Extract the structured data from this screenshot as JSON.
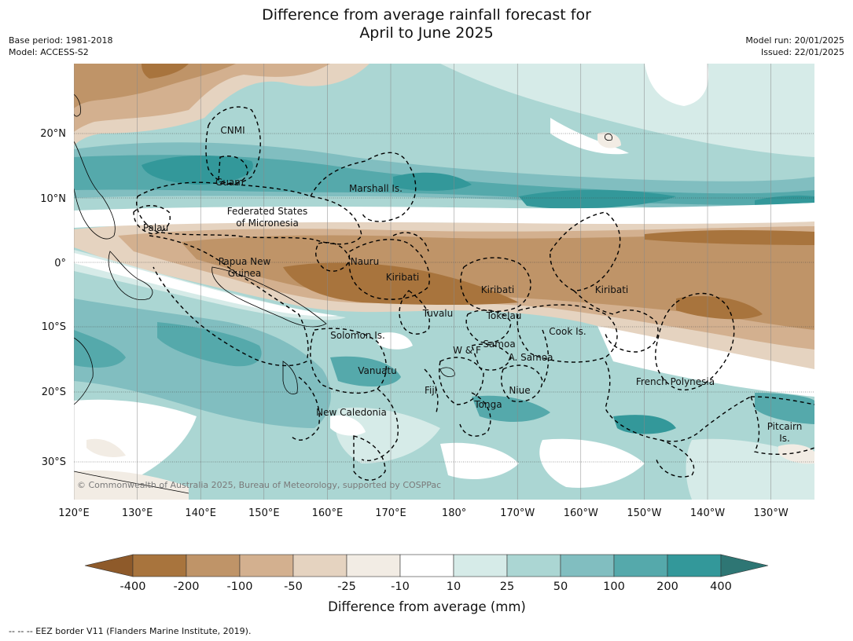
{
  "title_line1": "Difference from average rainfall forecast for",
  "title_line2": "April to June 2025",
  "meta_left": [
    "Base period: 1981-2018",
    "Model: ACCESS-S2"
  ],
  "meta_right": [
    "Model run: 20/01/2025",
    "Issued: 22/01/2025"
  ],
  "lat_labels": [
    "20°N",
    "10°N",
    "0°",
    "10°S",
    "20°S",
    "30°S"
  ],
  "lon_labels": [
    "120°E",
    "130°E",
    "140°E",
    "150°E",
    "160°E",
    "170°E",
    "180°",
    "170°W",
    "160°W",
    "150°W",
    "140°W",
    "130°W"
  ],
  "places": {
    "cnmi": "CNMI",
    "guam": "Guam",
    "marshall": "Marshall Is.",
    "fsm1": "Federated States",
    "fsm2": "of Micronesia",
    "palau": "Palau",
    "png1": "Papua New",
    "png2": "Guinea",
    "nauru": "Nauru",
    "kiribati_w": "Kiribati",
    "kiribati_c": "Kiribati",
    "kiribati_e": "Kiribati",
    "tuvalu": "Tuvalu",
    "tokelau": "Tokelau",
    "cook": "Cook Is.",
    "solomon": "Solomon Is.",
    "samoa": "Samoa",
    "wf": "W & F",
    "asamoa": "A. Samoa",
    "vanuatu": "Vanuatu",
    "fiji": "Fiji",
    "niue": "Niue",
    "tonga": "Tonga",
    "newcal": "New Caledonia",
    "frpoly": "French Polynesia",
    "pitcairn1": "Pitcairn",
    "pitcairn2": "Is."
  },
  "copyright": "© Commonwealth of Australia 2025, Bureau of Meteorology, supported by COSPPac",
  "colorbar": {
    "ticks": [
      "-400",
      "-200",
      "-100",
      "-50",
      "-25",
      "-10",
      "10",
      "25",
      "50",
      "100",
      "200",
      "400"
    ],
    "colors": [
      "#8e5a2a",
      "#a8743d",
      "#bf9468",
      "#d3b08f",
      "#e5d3c0",
      "#f2ece4",
      "#ffffff",
      "#d6ebe8",
      "#abd6d3",
      "#81bec0",
      "#55a9ab",
      "#33989a",
      "#2e7674"
    ],
    "label": "Difference from average (mm)"
  },
  "footnote": "--  --  -- EEZ border V11 (Flanders Marine Institute, 2019)."
}
